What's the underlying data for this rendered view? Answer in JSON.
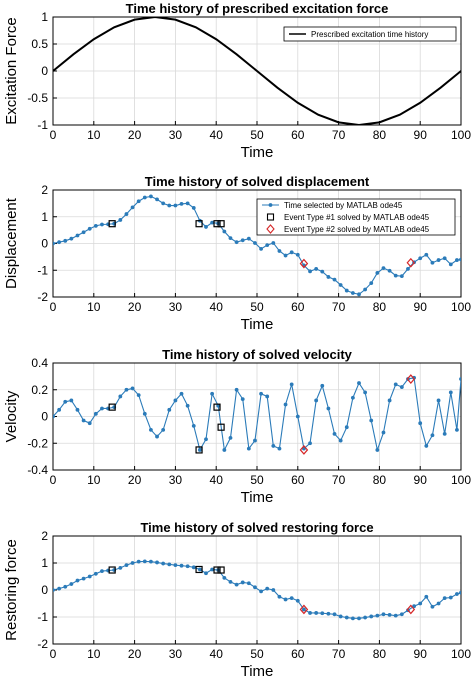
{
  "colors": {
    "excitation_line": "#000000",
    "selected_line": "#2b7bb9",
    "selected_marker": "#2b7bb9",
    "event1_marker": "#000000",
    "event2_marker": "#d62728",
    "grid": "#d9d9d9",
    "axes": "#000000"
  },
  "chart_data": [
    {
      "type": "line",
      "title": "Time history of prescribed excitation force",
      "xlabel": "Time",
      "ylabel": "Excitation Force",
      "xlim": [
        0,
        100
      ],
      "ylim": [
        -1,
        1
      ],
      "xticks": [
        0,
        10,
        20,
        30,
        40,
        50,
        60,
        70,
        80,
        90,
        100
      ],
      "yticks": [
        -1,
        -0.5,
        0,
        0.5,
        1
      ],
      "xtick_labels": [
        "0",
        "10",
        "20",
        "30",
        "40",
        "50",
        "60",
        "70",
        "80",
        "90",
        "100"
      ],
      "ytick_labels": [
        "-1",
        "-0.5",
        "0",
        "0.5",
        "1"
      ],
      "grid": true,
      "legend_position": "top-right",
      "series": [
        {
          "name": "Prescribed excitation time history",
          "style": "line",
          "x": [
            0,
            5,
            10,
            15,
            20,
            25,
            30,
            35,
            40,
            45,
            50,
            55,
            60,
            65,
            70,
            75,
            80,
            85,
            90,
            95,
            100
          ],
          "y": [
            0,
            0.309,
            0.588,
            0.809,
            0.951,
            1,
            0.951,
            0.809,
            0.588,
            0.309,
            0,
            -0.309,
            -0.588,
            -0.809,
            -0.951,
            -1,
            -0.951,
            -0.809,
            -0.588,
            -0.309,
            0
          ]
        }
      ]
    },
    {
      "type": "line",
      "title": "Time history of solved displacement",
      "xlabel": "Time",
      "ylabel": "Displacement",
      "xlim": [
        0,
        100
      ],
      "ylim": [
        -2,
        2
      ],
      "xticks": [
        0,
        10,
        20,
        30,
        40,
        50,
        60,
        70,
        80,
        90,
        100
      ],
      "yticks": [
        -2,
        -1,
        0,
        1,
        2
      ],
      "xtick_labels": [
        "0",
        "10",
        "20",
        "30",
        "40",
        "50",
        "60",
        "70",
        "80",
        "90",
        "100"
      ],
      "ytick_labels": [
        "-2",
        "-1",
        "0",
        "1",
        "2"
      ],
      "grid": true,
      "legend_position": "top-right",
      "series": [
        {
          "name": "Time selected by MATLAB ode45",
          "style": "line-dot",
          "x": [
            0,
            1.5,
            3,
            4.5,
            6,
            7.5,
            9,
            10.5,
            12,
            13.5,
            15,
            16.5,
            18,
            19.5,
            21,
            22.5,
            24,
            25.5,
            27,
            28.5,
            30,
            31.5,
            33,
            34.5,
            36,
            37.5,
            39,
            40.5,
            42,
            43.5,
            45,
            46.5,
            48,
            49.5,
            51,
            52.5,
            54,
            55.5,
            57,
            58.5,
            60,
            61.5,
            63,
            64.5,
            66,
            67.5,
            69,
            70.5,
            72,
            73.5,
            75,
            76.5,
            78,
            79.5,
            81,
            82.5,
            84,
            85.5,
            87,
            88.5,
            90,
            91.5,
            93,
            94.5,
            96,
            97.5,
            99,
            100
          ],
          "y": [
            0,
            0.05,
            0.1,
            0.18,
            0.3,
            0.42,
            0.55,
            0.66,
            0.71,
            0.72,
            0.74,
            0.88,
            1.1,
            1.35,
            1.58,
            1.72,
            1.76,
            1.65,
            1.5,
            1.42,
            1.42,
            1.48,
            1.5,
            1.33,
            0.85,
            0.62,
            0.78,
            0.75,
            0.45,
            0.2,
            0.05,
            0.12,
            0.18,
            0.02,
            -0.2,
            -0.06,
            0.02,
            -0.28,
            -0.45,
            -0.33,
            -0.42,
            -0.82,
            -1.04,
            -0.95,
            -1.05,
            -1.25,
            -1.35,
            -1.55,
            -1.76,
            -1.85,
            -1.9,
            -1.72,
            -1.48,
            -1.1,
            -0.92,
            -1.02,
            -1.2,
            -1.22,
            -0.95,
            -0.7,
            -0.55,
            -0.42,
            -0.72,
            -0.62,
            -0.55,
            -0.78,
            -0.62,
            -0.6
          ]
        },
        {
          "name": "Event Type #1 solved by MATLAB ode45",
          "style": "square-marker",
          "x": [
            14.5,
            35.8,
            40.2,
            41.2
          ],
          "y": [
            0.74,
            0.74,
            0.74,
            0.74
          ]
        },
        {
          "name": "Event Type #2 solved by MATLAB ode45",
          "style": "diamond-marker",
          "x": [
            61.5,
            87.7
          ],
          "y": [
            -0.75,
            -0.72
          ]
        }
      ]
    },
    {
      "type": "line",
      "title": "Time history of solved velocity",
      "xlabel": "Time",
      "ylabel": "Velocity",
      "xlim": [
        0,
        100
      ],
      "ylim": [
        -0.4,
        0.4
      ],
      "xticks": [
        0,
        10,
        20,
        30,
        40,
        50,
        60,
        70,
        80,
        90,
        100
      ],
      "yticks": [
        -0.4,
        -0.2,
        0,
        0.2,
        0.4
      ],
      "xtick_labels": [
        "0",
        "10",
        "20",
        "30",
        "40",
        "50",
        "60",
        "70",
        "80",
        "90",
        "100"
      ],
      "ytick_labels": [
        "-0.4",
        "-0.2",
        "0",
        "0.2",
        "0.4"
      ],
      "grid": true,
      "series": [
        {
          "name": "Time selected by MATLAB ode45",
          "style": "line-dot",
          "x": [
            0,
            1.5,
            3,
            4.5,
            6,
            7.5,
            9,
            10.5,
            12,
            13.5,
            15,
            16.5,
            18,
            19.5,
            21,
            22.5,
            24,
            25.5,
            27,
            28.5,
            30,
            31.5,
            33,
            34.5,
            36,
            37.5,
            39,
            40.5,
            42,
            43.5,
            45,
            46.5,
            48,
            49.5,
            51,
            52.5,
            54,
            55.5,
            57,
            58.5,
            60,
            61.5,
            63,
            64.5,
            66,
            67.5,
            69,
            70.5,
            72,
            73.5,
            75,
            76.5,
            78,
            79.5,
            81,
            82.5,
            84,
            85.5,
            87,
            88.5,
            90,
            91.5,
            93,
            94.5,
            96,
            97.5,
            99,
            100
          ],
          "y": [
            0,
            0.05,
            0.11,
            0.12,
            0.05,
            -0.03,
            -0.05,
            0.02,
            0.06,
            0.06,
            0.07,
            0.15,
            0.2,
            0.21,
            0.16,
            0.02,
            -0.1,
            -0.15,
            -0.1,
            0.05,
            0.12,
            0.17,
            0.08,
            -0.07,
            -0.25,
            -0.17,
            0.17,
            0.08,
            -0.25,
            -0.16,
            0.2,
            0.13,
            -0.24,
            -0.18,
            0.17,
            0.15,
            -0.22,
            -0.24,
            0.09,
            0.24,
            0.0,
            -0.24,
            -0.2,
            0.12,
            0.23,
            0.06,
            -0.13,
            -0.18,
            -0.08,
            0.14,
            0.25,
            0.18,
            -0.03,
            -0.25,
            -0.12,
            0.12,
            0.24,
            0.22,
            0.28,
            0.29,
            -0.05,
            -0.22,
            -0.14,
            0.12,
            -0.13,
            0.18,
            -0.1,
            0.28
          ]
        },
        {
          "name": "Event Type #1 solved by MATLAB ode45",
          "style": "square-marker",
          "x": [
            14.5,
            35.8,
            40.2,
            41.2
          ],
          "y": [
            0.07,
            -0.25,
            0.07,
            -0.08
          ]
        },
        {
          "name": "Event Type #2 solved by MATLAB ode45",
          "style": "diamond-marker",
          "x": [
            61.5,
            87.7
          ],
          "y": [
            -0.25,
            0.28
          ]
        }
      ]
    },
    {
      "type": "line",
      "title": "Time history of solved restoring force",
      "xlabel": "Time",
      "ylabel": "Restoring force",
      "xlim": [
        0,
        100
      ],
      "ylim": [
        -2,
        2
      ],
      "xticks": [
        0,
        10,
        20,
        30,
        40,
        50,
        60,
        70,
        80,
        90,
        100
      ],
      "yticks": [
        -2,
        -1,
        0,
        1,
        2
      ],
      "xtick_labels": [
        "0",
        "10",
        "20",
        "30",
        "40",
        "50",
        "60",
        "70",
        "80",
        "90",
        "100"
      ],
      "ytick_labels": [
        "-2",
        "-1",
        "0",
        "1",
        "2"
      ],
      "grid": true,
      "series": [
        {
          "name": "Time selected by MATLAB ode45",
          "style": "line-dot",
          "x": [
            0,
            1.5,
            3,
            4.5,
            6,
            7.5,
            9,
            10.5,
            12,
            13.5,
            15,
            16.5,
            18,
            19.5,
            21,
            22.5,
            24,
            25.5,
            27,
            28.5,
            30,
            31.5,
            33,
            34.5,
            36,
            37.5,
            39,
            40.5,
            42,
            43.5,
            45,
            46.5,
            48,
            49.5,
            51,
            52.5,
            54,
            55.5,
            57,
            58.5,
            60,
            61.5,
            63,
            64.5,
            66,
            67.5,
            69,
            70.5,
            72,
            73.5,
            75,
            76.5,
            78,
            79.5,
            81,
            82.5,
            84,
            85.5,
            87,
            88.5,
            90,
            91.5,
            93,
            94.5,
            96,
            97.5,
            99,
            100
          ],
          "y": [
            0,
            0.05,
            0.12,
            0.22,
            0.35,
            0.42,
            0.5,
            0.6,
            0.7,
            0.72,
            0.74,
            0.82,
            0.92,
            1.0,
            1.05,
            1.06,
            1.05,
            1.02,
            0.98,
            0.95,
            0.92,
            0.9,
            0.88,
            0.84,
            0.76,
            0.62,
            0.76,
            0.74,
            0.45,
            0.3,
            0.2,
            0.28,
            0.25,
            0.1,
            -0.05,
            0.05,
            0.0,
            -0.25,
            -0.35,
            -0.3,
            -0.4,
            -0.72,
            -0.85,
            -0.85,
            -0.86,
            -0.88,
            -0.9,
            -0.98,
            -1.02,
            -1.05,
            -1.05,
            -1.02,
            -0.98,
            -0.95,
            -0.9,
            -0.92,
            -0.95,
            -0.9,
            -0.75,
            -0.6,
            -0.5,
            -0.25,
            -0.62,
            -0.5,
            -0.3,
            -0.28,
            -0.15,
            -0.1
          ]
        },
        {
          "name": "Event Type #1 solved by MATLAB ode45",
          "style": "square-marker",
          "x": [
            14.5,
            35.8,
            40.2,
            41.2
          ],
          "y": [
            0.74,
            0.76,
            0.74,
            0.74
          ]
        },
        {
          "name": "Event Type #2 solved by MATLAB ode45",
          "style": "diamond-marker",
          "x": [
            61.5,
            87.7
          ],
          "y": [
            -0.72,
            -0.72
          ]
        }
      ]
    }
  ]
}
